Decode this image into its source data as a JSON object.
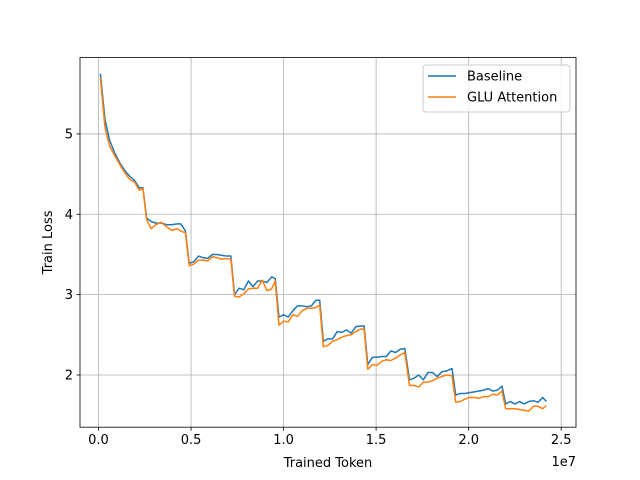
{
  "chart_data": {
    "type": "line",
    "xlabel": "Trained Token",
    "ylabel": "Train Loss",
    "x_offset_label": "1e7",
    "xlim": [
      -1000000,
      25800000
    ],
    "ylim": [
      1.35,
      5.95
    ],
    "x_ticks": [
      0.0,
      5000000,
      10000000,
      15000000,
      20000000,
      25000000
    ],
    "x_tick_labels": [
      "0.0",
      "0.5",
      "1.0",
      "1.5",
      "2.0",
      "2.5"
    ],
    "y_ticks": [
      2,
      3,
      4,
      5
    ],
    "y_tick_labels": [
      "2",
      "3",
      "4",
      "5"
    ],
    "grid": true,
    "legend_position": "upper right",
    "series": [
      {
        "name": "Baseline",
        "color": "#1f77b4",
        "points": [
          [
            100000,
            5.75
          ],
          [
            350000,
            5.18
          ],
          [
            600000,
            4.92
          ],
          [
            900000,
            4.75
          ],
          [
            1200000,
            4.62
          ],
          [
            1500000,
            4.52
          ],
          [
            1700000,
            4.47
          ],
          [
            1950000,
            4.42
          ],
          [
            2200000,
            4.33
          ],
          [
            2400000,
            4.33
          ],
          [
            2600000,
            3.95
          ],
          [
            2850000,
            3.91
          ],
          [
            3100000,
            3.89
          ],
          [
            3400000,
            3.89
          ],
          [
            3700000,
            3.87
          ],
          [
            3950000,
            3.87
          ],
          [
            4250000,
            3.88
          ],
          [
            4450000,
            3.88
          ],
          [
            4700000,
            3.79
          ],
          [
            4900000,
            3.39
          ],
          [
            5150000,
            3.41
          ],
          [
            5400000,
            3.48
          ],
          [
            5650000,
            3.46
          ],
          [
            5900000,
            3.45
          ],
          [
            6150000,
            3.5
          ],
          [
            6400000,
            3.5
          ],
          [
            6650000,
            3.49
          ],
          [
            6900000,
            3.48
          ],
          [
            7150000,
            3.48
          ],
          [
            7350000,
            3.0
          ],
          [
            7600000,
            3.08
          ],
          [
            7850000,
            3.06
          ],
          [
            8100000,
            3.17
          ],
          [
            8350000,
            3.1
          ],
          [
            8600000,
            3.17
          ],
          [
            8850000,
            3.17
          ],
          [
            9100000,
            3.15
          ],
          [
            9350000,
            3.22
          ],
          [
            9550000,
            3.2
          ],
          [
            9750000,
            2.72
          ],
          [
            10000000,
            2.75
          ],
          [
            10250000,
            2.72
          ],
          [
            10500000,
            2.8
          ],
          [
            10750000,
            2.86
          ],
          [
            11000000,
            2.86
          ],
          [
            11250000,
            2.85
          ],
          [
            11500000,
            2.86
          ],
          [
            11750000,
            2.93
          ],
          [
            11950000,
            2.93
          ],
          [
            12150000,
            2.42
          ],
          [
            12400000,
            2.45
          ],
          [
            12650000,
            2.45
          ],
          [
            12900000,
            2.54
          ],
          [
            13150000,
            2.53
          ],
          [
            13400000,
            2.56
          ],
          [
            13650000,
            2.52
          ],
          [
            13900000,
            2.6
          ],
          [
            14150000,
            2.61
          ],
          [
            14350000,
            2.61
          ],
          [
            14550000,
            2.13
          ],
          [
            14800000,
            2.22
          ],
          [
            15050000,
            2.22
          ],
          [
            15300000,
            2.23
          ],
          [
            15550000,
            2.23
          ],
          [
            15800000,
            2.3
          ],
          [
            16050000,
            2.28
          ],
          [
            16300000,
            2.32
          ],
          [
            16550000,
            2.33
          ],
          [
            16800000,
            1.94
          ],
          [
            17050000,
            1.96
          ],
          [
            17300000,
            2.0
          ],
          [
            17550000,
            1.94
          ],
          [
            17800000,
            2.03
          ],
          [
            18050000,
            2.03
          ],
          [
            18300000,
            1.98
          ],
          [
            18550000,
            2.04
          ],
          [
            18800000,
            2.05
          ],
          [
            19100000,
            2.08
          ],
          [
            19300000,
            1.75
          ],
          [
            19550000,
            1.77
          ],
          [
            19800000,
            1.77
          ],
          [
            20050000,
            1.78
          ],
          [
            20300000,
            1.79
          ],
          [
            20550000,
            1.8
          ],
          [
            20800000,
            1.81
          ],
          [
            21050000,
            1.83
          ],
          [
            21300000,
            1.8
          ],
          [
            21550000,
            1.81
          ],
          [
            21800000,
            1.86
          ],
          [
            22000000,
            1.64
          ],
          [
            22250000,
            1.67
          ],
          [
            22500000,
            1.64
          ],
          [
            22750000,
            1.67
          ],
          [
            23000000,
            1.64
          ],
          [
            23250000,
            1.67
          ],
          [
            23500000,
            1.68
          ],
          [
            23750000,
            1.66
          ],
          [
            24000000,
            1.72
          ],
          [
            24200000,
            1.67
          ]
        ]
      },
      {
        "name": "GLU Attention",
        "color": "#ff7f0e",
        "points": [
          [
            100000,
            5.7
          ],
          [
            350000,
            5.08
          ],
          [
            600000,
            4.85
          ],
          [
            900000,
            4.72
          ],
          [
            1200000,
            4.6
          ],
          [
            1500000,
            4.49
          ],
          [
            1700000,
            4.43
          ],
          [
            1950000,
            4.4
          ],
          [
            2200000,
            4.3
          ],
          [
            2400000,
            4.32
          ],
          [
            2600000,
            3.93
          ],
          [
            2850000,
            3.82
          ],
          [
            3100000,
            3.87
          ],
          [
            3400000,
            3.9
          ],
          [
            3700000,
            3.84
          ],
          [
            3950000,
            3.8
          ],
          [
            4250000,
            3.82
          ],
          [
            4450000,
            3.79
          ],
          [
            4700000,
            3.77
          ],
          [
            4900000,
            3.36
          ],
          [
            5150000,
            3.38
          ],
          [
            5400000,
            3.43
          ],
          [
            5650000,
            3.43
          ],
          [
            5900000,
            3.42
          ],
          [
            6150000,
            3.47
          ],
          [
            6400000,
            3.46
          ],
          [
            6650000,
            3.44
          ],
          [
            6900000,
            3.45
          ],
          [
            7150000,
            3.44
          ],
          [
            7350000,
            2.98
          ],
          [
            7600000,
            2.97
          ],
          [
            7850000,
            3.01
          ],
          [
            8100000,
            3.07
          ],
          [
            8350000,
            3.08
          ],
          [
            8600000,
            3.08
          ],
          [
            8850000,
            3.18
          ],
          [
            9100000,
            3.05
          ],
          [
            9350000,
            3.07
          ],
          [
            9550000,
            3.17
          ],
          [
            9750000,
            2.62
          ],
          [
            10000000,
            2.67
          ],
          [
            10250000,
            2.66
          ],
          [
            10500000,
            2.75
          ],
          [
            10750000,
            2.73
          ],
          [
            11000000,
            2.8
          ],
          [
            11250000,
            2.83
          ],
          [
            11500000,
            2.83
          ],
          [
            11750000,
            2.84
          ],
          [
            11950000,
            2.87
          ],
          [
            12150000,
            2.35
          ],
          [
            12400000,
            2.37
          ],
          [
            12650000,
            2.42
          ],
          [
            12900000,
            2.44
          ],
          [
            13150000,
            2.47
          ],
          [
            13400000,
            2.49
          ],
          [
            13650000,
            2.5
          ],
          [
            13900000,
            2.54
          ],
          [
            14150000,
            2.57
          ],
          [
            14350000,
            2.57
          ],
          [
            14550000,
            2.07
          ],
          [
            14800000,
            2.13
          ],
          [
            15050000,
            2.12
          ],
          [
            15300000,
            2.17
          ],
          [
            15550000,
            2.19
          ],
          [
            15800000,
            2.18
          ],
          [
            16050000,
            2.21
          ],
          [
            16300000,
            2.25
          ],
          [
            16550000,
            2.28
          ],
          [
            16800000,
            1.87
          ],
          [
            17050000,
            1.87
          ],
          [
            17300000,
            1.85
          ],
          [
            17550000,
            1.91
          ],
          [
            17800000,
            1.91
          ],
          [
            18050000,
            1.93
          ],
          [
            18300000,
            1.96
          ],
          [
            18550000,
            1.98
          ],
          [
            18800000,
            2.0
          ],
          [
            19100000,
            1.99
          ],
          [
            19300000,
            1.66
          ],
          [
            19550000,
            1.67
          ],
          [
            19800000,
            1.7
          ],
          [
            20050000,
            1.72
          ],
          [
            20300000,
            1.72
          ],
          [
            20550000,
            1.71
          ],
          [
            20800000,
            1.73
          ],
          [
            21050000,
            1.73
          ],
          [
            21300000,
            1.76
          ],
          [
            21550000,
            1.75
          ],
          [
            21800000,
            1.8
          ],
          [
            22000000,
            1.58
          ],
          [
            22250000,
            1.58
          ],
          [
            22500000,
            1.58
          ],
          [
            22750000,
            1.57
          ],
          [
            23000000,
            1.56
          ],
          [
            23250000,
            1.55
          ],
          [
            23500000,
            1.61
          ],
          [
            23750000,
            1.61
          ],
          [
            24000000,
            1.58
          ],
          [
            24200000,
            1.62
          ]
        ]
      }
    ]
  }
}
